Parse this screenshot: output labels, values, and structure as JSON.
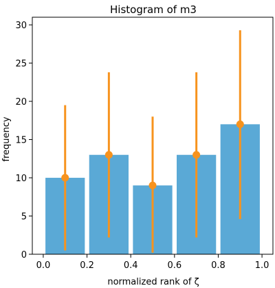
{
  "chart_data": {
    "type": "bar",
    "title": "Histogram of m3",
    "xlabel": "normalized rank of ζ",
    "ylabel": "frequency",
    "xlim": [
      -0.05,
      1.05
    ],
    "ylim": [
      0,
      31
    ],
    "xticks": [
      0.0,
      0.2,
      0.4,
      0.6,
      0.8,
      1.0
    ],
    "xtick_labels": [
      "0.0",
      "0.2",
      "0.4",
      "0.6",
      "0.8",
      "1.0"
    ],
    "yticks": [
      0,
      5,
      10,
      15,
      20,
      25,
      30
    ],
    "ytick_labels": [
      "0",
      "5",
      "10",
      "15",
      "20",
      "25",
      "30"
    ],
    "grid": false,
    "legend": "none",
    "bar_color": "#5aa9d6",
    "error_color": "#f7931e",
    "bins": [
      {
        "x": 0.1,
        "width": 0.18,
        "value": 10,
        "err_low": 0.5,
        "err_high": 19.5
      },
      {
        "x": 0.3,
        "width": 0.18,
        "value": 13,
        "err_low": 2.2,
        "err_high": 23.8
      },
      {
        "x": 0.5,
        "width": 0.18,
        "value": 9,
        "err_low": 0.2,
        "err_high": 18.0
      },
      {
        "x": 0.7,
        "width": 0.18,
        "value": 13,
        "err_low": 2.2,
        "err_high": 23.8
      },
      {
        "x": 0.9,
        "width": 0.18,
        "value": 17,
        "err_low": 4.6,
        "err_high": 29.3
      }
    ]
  }
}
